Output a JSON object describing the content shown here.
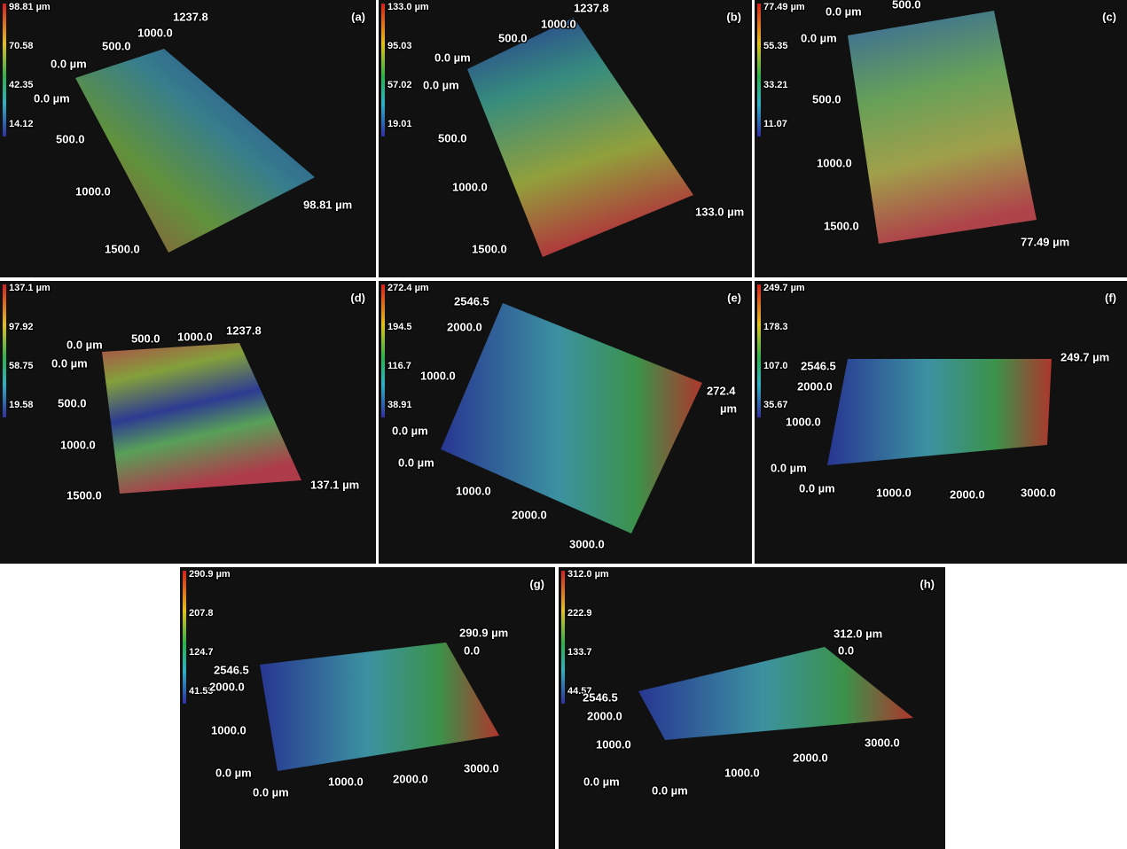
{
  "panels": [
    {
      "label": "(a)",
      "scale": [
        "98.81 µm",
        "70.58",
        "42.35",
        "14.12"
      ],
      "axis_labels": [
        "1237.8",
        "1000.0",
        "500.0",
        "0.0 µm",
        "0.0 µm",
        "500.0",
        "1000.0",
        "1500.0",
        "98.81 µm"
      ]
    },
    {
      "label": "(b)",
      "scale": [
        "133.0 µm",
        "95.03",
        "57.02",
        "19.01"
      ],
      "axis_labels": [
        "1237.8",
        "1000.0",
        "500.0",
        "0.0 µm",
        "0.0 µm",
        "500.0",
        "1000.0",
        "1500.0",
        "133.0 µm"
      ]
    },
    {
      "label": "(c)",
      "scale": [
        "77.49 µm",
        "55.35",
        "33.21",
        "11.07"
      ],
      "axis_labels": [
        "0.0 µm",
        "500.0",
        "0.0 µm",
        "500.0",
        "1000.0",
        "1500.0",
        "77.49 µm"
      ]
    },
    {
      "label": "(d)",
      "scale": [
        "137.1 µm",
        "97.92",
        "58.75",
        "19.58"
      ],
      "axis_labels": [
        "0.0 µm",
        "500.0",
        "1000.0",
        "1237.8",
        "0.0 µm",
        "500.0",
        "1000.0",
        "1500.0",
        "137.1 µm"
      ]
    },
    {
      "label": "(e)",
      "scale": [
        "272.4 µm",
        "194.5",
        "116.7",
        "38.91"
      ],
      "axis_labels": [
        "2546.5",
        "2000.0",
        "1000.0",
        "0.0 µm",
        "0.0 µm",
        "1000.0",
        "2000.0",
        "3000.0",
        "272.4",
        "µm"
      ]
    },
    {
      "label": "(f)",
      "scale": [
        "249.7 µm",
        "178.3",
        "107.0",
        "35.67"
      ],
      "axis_labels": [
        "2546.5",
        "2000.0",
        "1000.0",
        "0.0 µm",
        "0.0 µm",
        "1000.0",
        "2000.0",
        "3000.0",
        "249.7 µm"
      ]
    },
    {
      "label": "(g)",
      "scale": [
        "290.9 µm",
        "207.8",
        "124.7",
        "41.55"
      ],
      "axis_labels": [
        "2546.5",
        "2000.0",
        "1000.0",
        "0.0 µm",
        "0.0 µm",
        "1000.0",
        "2000.0",
        "3000.0",
        "290.9 µm",
        "0.0"
      ]
    },
    {
      "label": "(h)",
      "scale": [
        "312.0 µm",
        "222.9",
        "133.7",
        "44.57"
      ],
      "axis_labels": [
        "2546.5",
        "2000.0",
        "1000.0",
        "0.0 µm",
        "0.0 µm",
        "1000.0",
        "2000.0",
        "3000.0",
        "312.0 µm",
        "0.0"
      ]
    }
  ]
}
